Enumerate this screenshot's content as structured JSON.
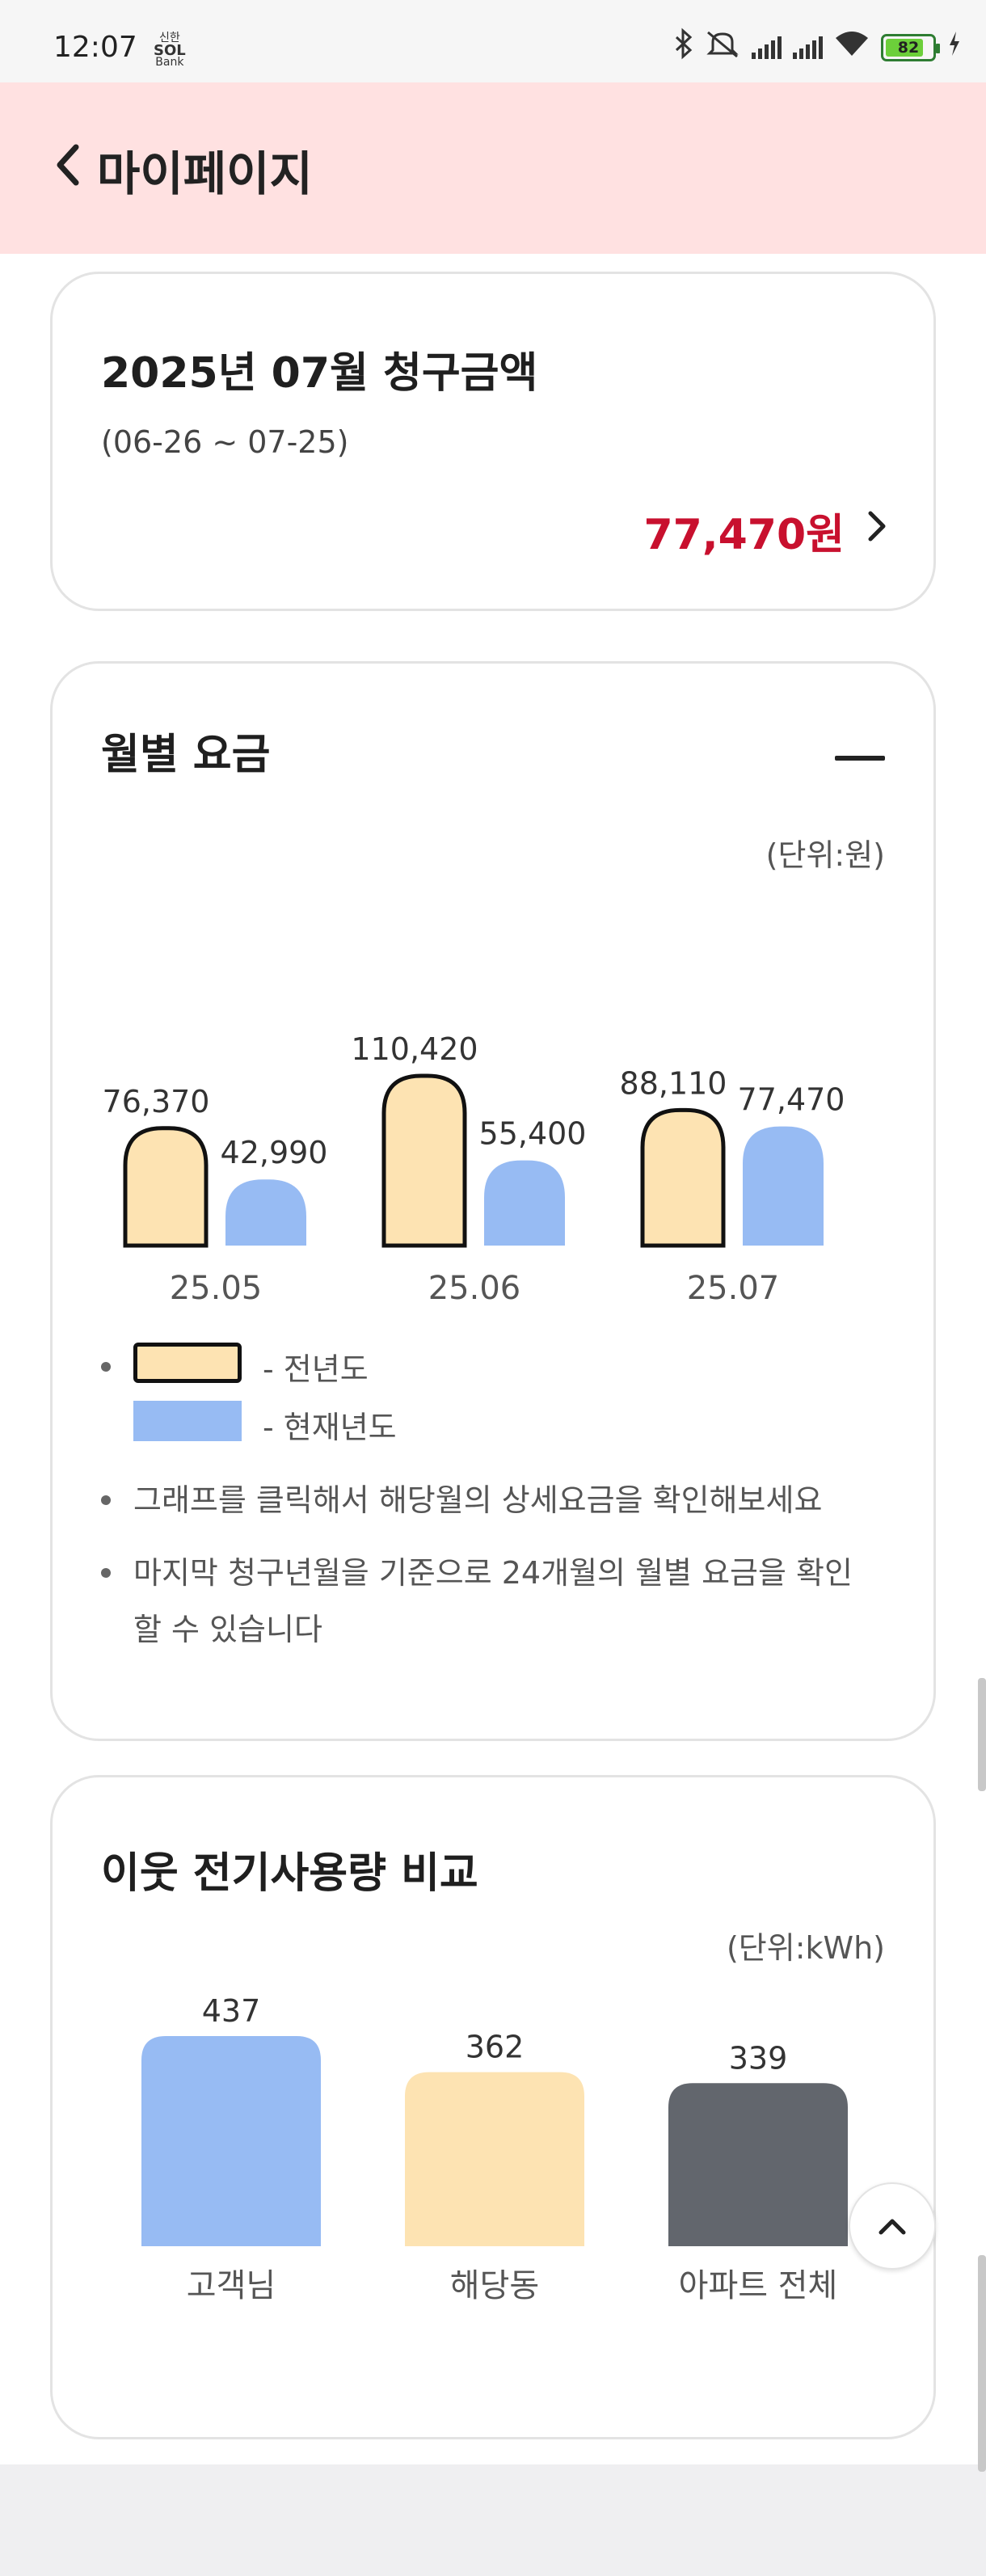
{
  "status_bar": {
    "time": "12:07",
    "carrier": [
      "신한",
      "SOL",
      "Bank"
    ],
    "battery": "82"
  },
  "header": {
    "title": "마이페이지"
  },
  "bill_card": {
    "title": "2025년 07월 청구금액",
    "period": "(06-26 ~ 07-25)",
    "amount": "77,470원"
  },
  "monthly_card": {
    "title": "월별 요금",
    "unit": "(단위:원)",
    "legend": [
      {
        "label": "- 전년도",
        "color": "#fde3b2"
      },
      {
        "label": "- 현재년도",
        "color": "#97bbf3"
      }
    ],
    "notes": [
      "그래프를 클릭해서 해당월의 상세요금을 확인해보세요",
      "마지막 청구년월을 기준으로 24개월의 월별 요금을 확인할 수 있습니다"
    ]
  },
  "neighbor_card": {
    "title": "이웃 전기사용량 비교",
    "unit": "(단위:kWh)"
  },
  "chart_data": [
    {
      "type": "bar",
      "title": "월별 요금",
      "categories": [
        "25.05",
        "25.06",
        "25.07"
      ],
      "series": [
        {
          "name": "전년도",
          "values": [
            76370,
            110420,
            88110
          ],
          "labels": [
            "76,370",
            "110,420",
            "88,110"
          ],
          "color": "#fde3b2"
        },
        {
          "name": "현재년도",
          "values": [
            42990,
            55400,
            77470
          ],
          "labels": [
            "42,990",
            "55,400",
            "77,470"
          ],
          "color": "#97bbf3"
        }
      ],
      "ylabel": "(단위:원)"
    },
    {
      "type": "bar",
      "title": "이웃 전기사용량 비교",
      "categories": [
        "고객님",
        "해당동",
        "아파트 전체"
      ],
      "values": [
        437,
        362,
        339
      ],
      "labels": [
        "437",
        "362",
        "339"
      ],
      "colors": [
        "#97bbf3",
        "#fde3b2",
        "#62666d"
      ],
      "ylabel": "(단위:kWh)"
    }
  ]
}
